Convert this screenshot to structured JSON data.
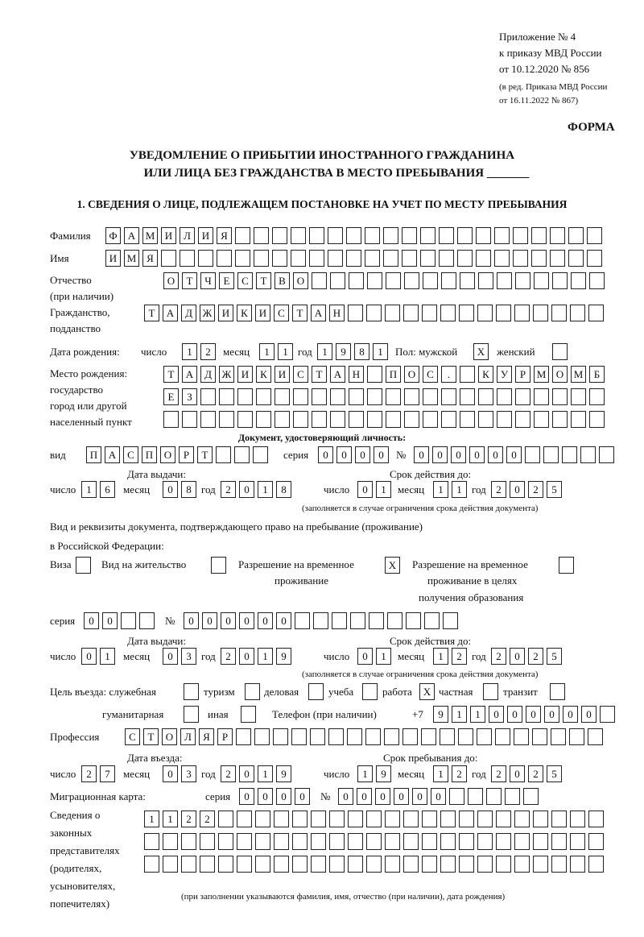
{
  "header": {
    "appendix": "Приложение № 4",
    "order": "к приказу МВД России",
    "order_date": "от 10.12.2020 № 856",
    "edition1": "(в ред. Приказа МВД России",
    "edition2": "от 16.11.2022 № 867)",
    "form": "ФОРМА",
    "title1": "УВЕДОМЛЕНИЕ О ПРИБЫТИИ ИНОСТРАННОГО ГРАЖДАНИНА",
    "title2": "ИЛИ ЛИЦА БЕЗ ГРАЖДАНСТВА В МЕСТО ПРЕБЫВАНИЯ _______",
    "section1": "1. СВЕДЕНИЯ О ЛИЦЕ, ПОДЛЕЖАЩЕМ ПОСТАНОВКЕ НА УЧЕТ ПО МЕСТУ ПРЕБЫВАНИЯ"
  },
  "labels": {
    "surname": "Фамилия",
    "name": "Имя",
    "patronymic1": "Отчество",
    "patronymic2": "(при наличии)",
    "citizenship1": "Гражданство,",
    "citizenship2": "подданство",
    "dob": "Дата рождения:",
    "day": "число",
    "month": "месяц",
    "year": "год",
    "sex": "Пол: мужской",
    "female": "женский",
    "birthplace1": "Место рождения:",
    "birthplace2": "государство",
    "birthplace3": "город или другой",
    "birthplace4": "населенный пункт",
    "id_doc": "Документ, удостоверяющий личность:",
    "kind": "вид",
    "series": "серия",
    "number": "№",
    "issue_date": "Дата выдачи:",
    "valid_until": "Срок действия до:",
    "validity_note": "(заполняется в случае ограничения срока действия документа)",
    "stay_doc1": "Вид и реквизиты документа, подтверждающего право на пребывание (проживание)",
    "stay_doc2": "в Российской Федерации:",
    "visa": "Виза",
    "residence": "Вид на жительство",
    "temp1": "Разрешение на временное",
    "temp2": "проживание",
    "temp_edu1": "Разрешение на временное",
    "temp_edu2": "проживание в целях",
    "temp_edu3": "получения образования",
    "purpose": "Цель въезда: служебная",
    "tourism": "туризм",
    "business": "деловая",
    "study": "учеба",
    "work": "работа",
    "private": "частная",
    "transit": "транзит",
    "humanitarian": "гуманитарная",
    "other": "иная",
    "phone": "Телефон (при наличии)",
    "phone_prefix": "+7",
    "profession": "Профессия",
    "entry_date": "Дата въезда:",
    "stay_until": "Срок пребывания до:",
    "migration_card": "Миграционная карта:",
    "reps1": "Сведения о",
    "reps2": "законных",
    "reps3": "представителях",
    "reps4": "(родителях,",
    "reps5": "усыновителях,",
    "reps6": "попечителях)",
    "reps_note": "(при заполнении указываются фамилия, имя, отчество (при наличии), дата рождения)"
  },
  "values": {
    "surname": "ФАМИЛИЯ",
    "name": "ИМЯ",
    "patronymic": "ОТЧЕСТВО",
    "citizenship": "ТАДЖИКИСТАН",
    "dob_day": "12",
    "dob_month": "11",
    "dob_year": "1981",
    "sex_male": "X",
    "sex_female": "",
    "birthplace1": "ТАДЖИКИСТАН ПОС. КУРМОМБ",
    "birthplace2": "ЕЗ",
    "birthplace3": "",
    "doc_kind": "ПАСПОРТ",
    "doc_series": "0000",
    "doc_number": "000000",
    "doc_issue_day": "16",
    "doc_issue_month": "08",
    "doc_issue_year": "2018",
    "doc_valid_day": "01",
    "doc_valid_month": "11",
    "doc_valid_year": "2025",
    "visa": "",
    "residence": "",
    "temp": "X",
    "temp_edu": "",
    "stay_series": "00",
    "stay_number": "000000",
    "stay_issue_day": "01",
    "stay_issue_month": "03",
    "stay_issue_year": "2019",
    "stay_valid_day": "01",
    "stay_valid_month": "12",
    "stay_valid_year": "2025",
    "purpose_official": "",
    "purpose_tourism": "",
    "purpose_business": "",
    "purpose_study": "",
    "purpose_work": "X",
    "purpose_private": "",
    "purpose_transit": "",
    "purpose_humanitarian": "",
    "purpose_other": "",
    "phone": "911000000",
    "profession": "СТОЛЯР",
    "entry_day": "27",
    "entry_month": "03",
    "entry_year": "2019",
    "stay_day": "19",
    "stay_month": "12",
    "stay_year": "2025",
    "mc_series": "0000",
    "mc_number": "000000",
    "reps1": "1122",
    "reps2": "",
    "reps3": ""
  }
}
